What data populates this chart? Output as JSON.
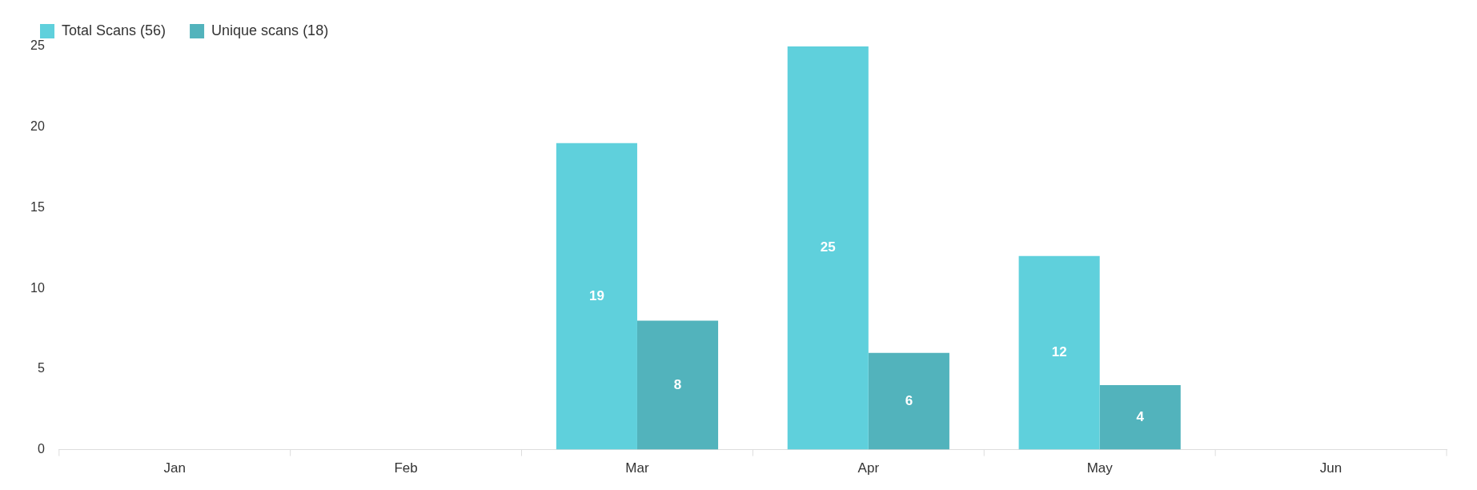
{
  "chart_data": {
    "type": "bar",
    "categories": [
      "Jan",
      "Feb",
      "Mar",
      "Apr",
      "May",
      "Jun"
    ],
    "series": [
      {
        "name": "Total Scans (56)",
        "color": "#5fd0dc",
        "values": [
          null,
          null,
          19,
          25,
          12,
          null
        ]
      },
      {
        "name": "Unique scans (18)",
        "color": "#52b3bc",
        "values": [
          null,
          null,
          8,
          6,
          4,
          null
        ]
      }
    ],
    "ylim": [
      0,
      25
    ],
    "yticks": [
      0,
      5,
      10,
      15,
      20,
      25
    ],
    "grid": false,
    "legend": "top left",
    "data_labels": true
  }
}
